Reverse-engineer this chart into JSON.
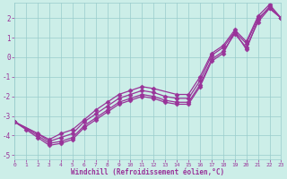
{
  "xlabel": "Windchill (Refroidissement éolien,°C)",
  "background_color": "#cceee8",
  "grid_color": "#99cccc",
  "line_color": "#993399",
  "xlim": [
    0,
    23
  ],
  "ylim": [
    -5.2,
    2.8
  ],
  "xticks": [
    0,
    1,
    2,
    3,
    4,
    5,
    6,
    7,
    8,
    9,
    10,
    11,
    12,
    13,
    14,
    15,
    16,
    17,
    18,
    19,
    20,
    21,
    22,
    23
  ],
  "yticks": [
    -5,
    -4,
    -3,
    -2,
    -1,
    0,
    1,
    2
  ],
  "series": [
    {
      "x": [
        0,
        1,
        2,
        3,
        4,
        5,
        6,
        7,
        8,
        9,
        10,
        11,
        12,
        13,
        14,
        15,
        16,
        17,
        18,
        19,
        20,
        21,
        22,
        23
      ],
      "y": [
        -3.3,
        -3.7,
        -4.1,
        -4.5,
        -4.4,
        -4.2,
        -3.6,
        -3.2,
        -2.8,
        -2.4,
        -2.2,
        -2.0,
        -2.1,
        -2.3,
        -2.4,
        -2.4,
        -1.5,
        -0.2,
        0.2,
        1.3,
        0.4,
        1.9,
        2.6,
        2.0
      ]
    },
    {
      "x": [
        0,
        2,
        3,
        4,
        5,
        6,
        7,
        8,
        9,
        10,
        11,
        12,
        13,
        14,
        15,
        16,
        17,
        18,
        19,
        20,
        21,
        22,
        23
      ],
      "y": [
        -3.3,
        -4.0,
        -4.4,
        -4.3,
        -4.1,
        -3.5,
        -3.1,
        -2.7,
        -2.3,
        -2.1,
        -1.9,
        -2.0,
        -2.2,
        -2.3,
        -2.3,
        -1.4,
        -0.1,
        0.3,
        1.2,
        0.5,
        1.8,
        2.5,
        2.0
      ]
    },
    {
      "x": [
        0,
        2,
        3,
        4,
        5,
        6,
        7,
        8,
        9,
        10,
        11,
        12,
        13,
        14,
        15,
        16,
        17,
        18,
        19,
        20,
        21,
        22,
        23
      ],
      "y": [
        -3.3,
        -3.9,
        -4.3,
        -4.1,
        -3.9,
        -3.3,
        -2.9,
        -2.5,
        -2.1,
        -1.9,
        -1.7,
        -1.8,
        -2.0,
        -2.1,
        -2.1,
        -1.2,
        0.1,
        0.5,
        1.3,
        0.7,
        2.0,
        2.5,
        2.0
      ]
    },
    {
      "x": [
        0,
        3,
        4,
        5,
        6,
        7,
        8,
        9,
        10,
        11,
        12,
        14,
        15,
        16,
        17,
        18,
        19,
        20,
        21,
        22,
        23
      ],
      "y": [
        -3.3,
        -4.2,
        -3.9,
        -3.7,
        -3.2,
        -2.7,
        -2.3,
        -1.9,
        -1.7,
        -1.5,
        -1.6,
        -1.9,
        -1.9,
        -1.0,
        0.2,
        0.6,
        1.4,
        0.8,
        2.1,
        2.7,
        2.0
      ]
    }
  ]
}
